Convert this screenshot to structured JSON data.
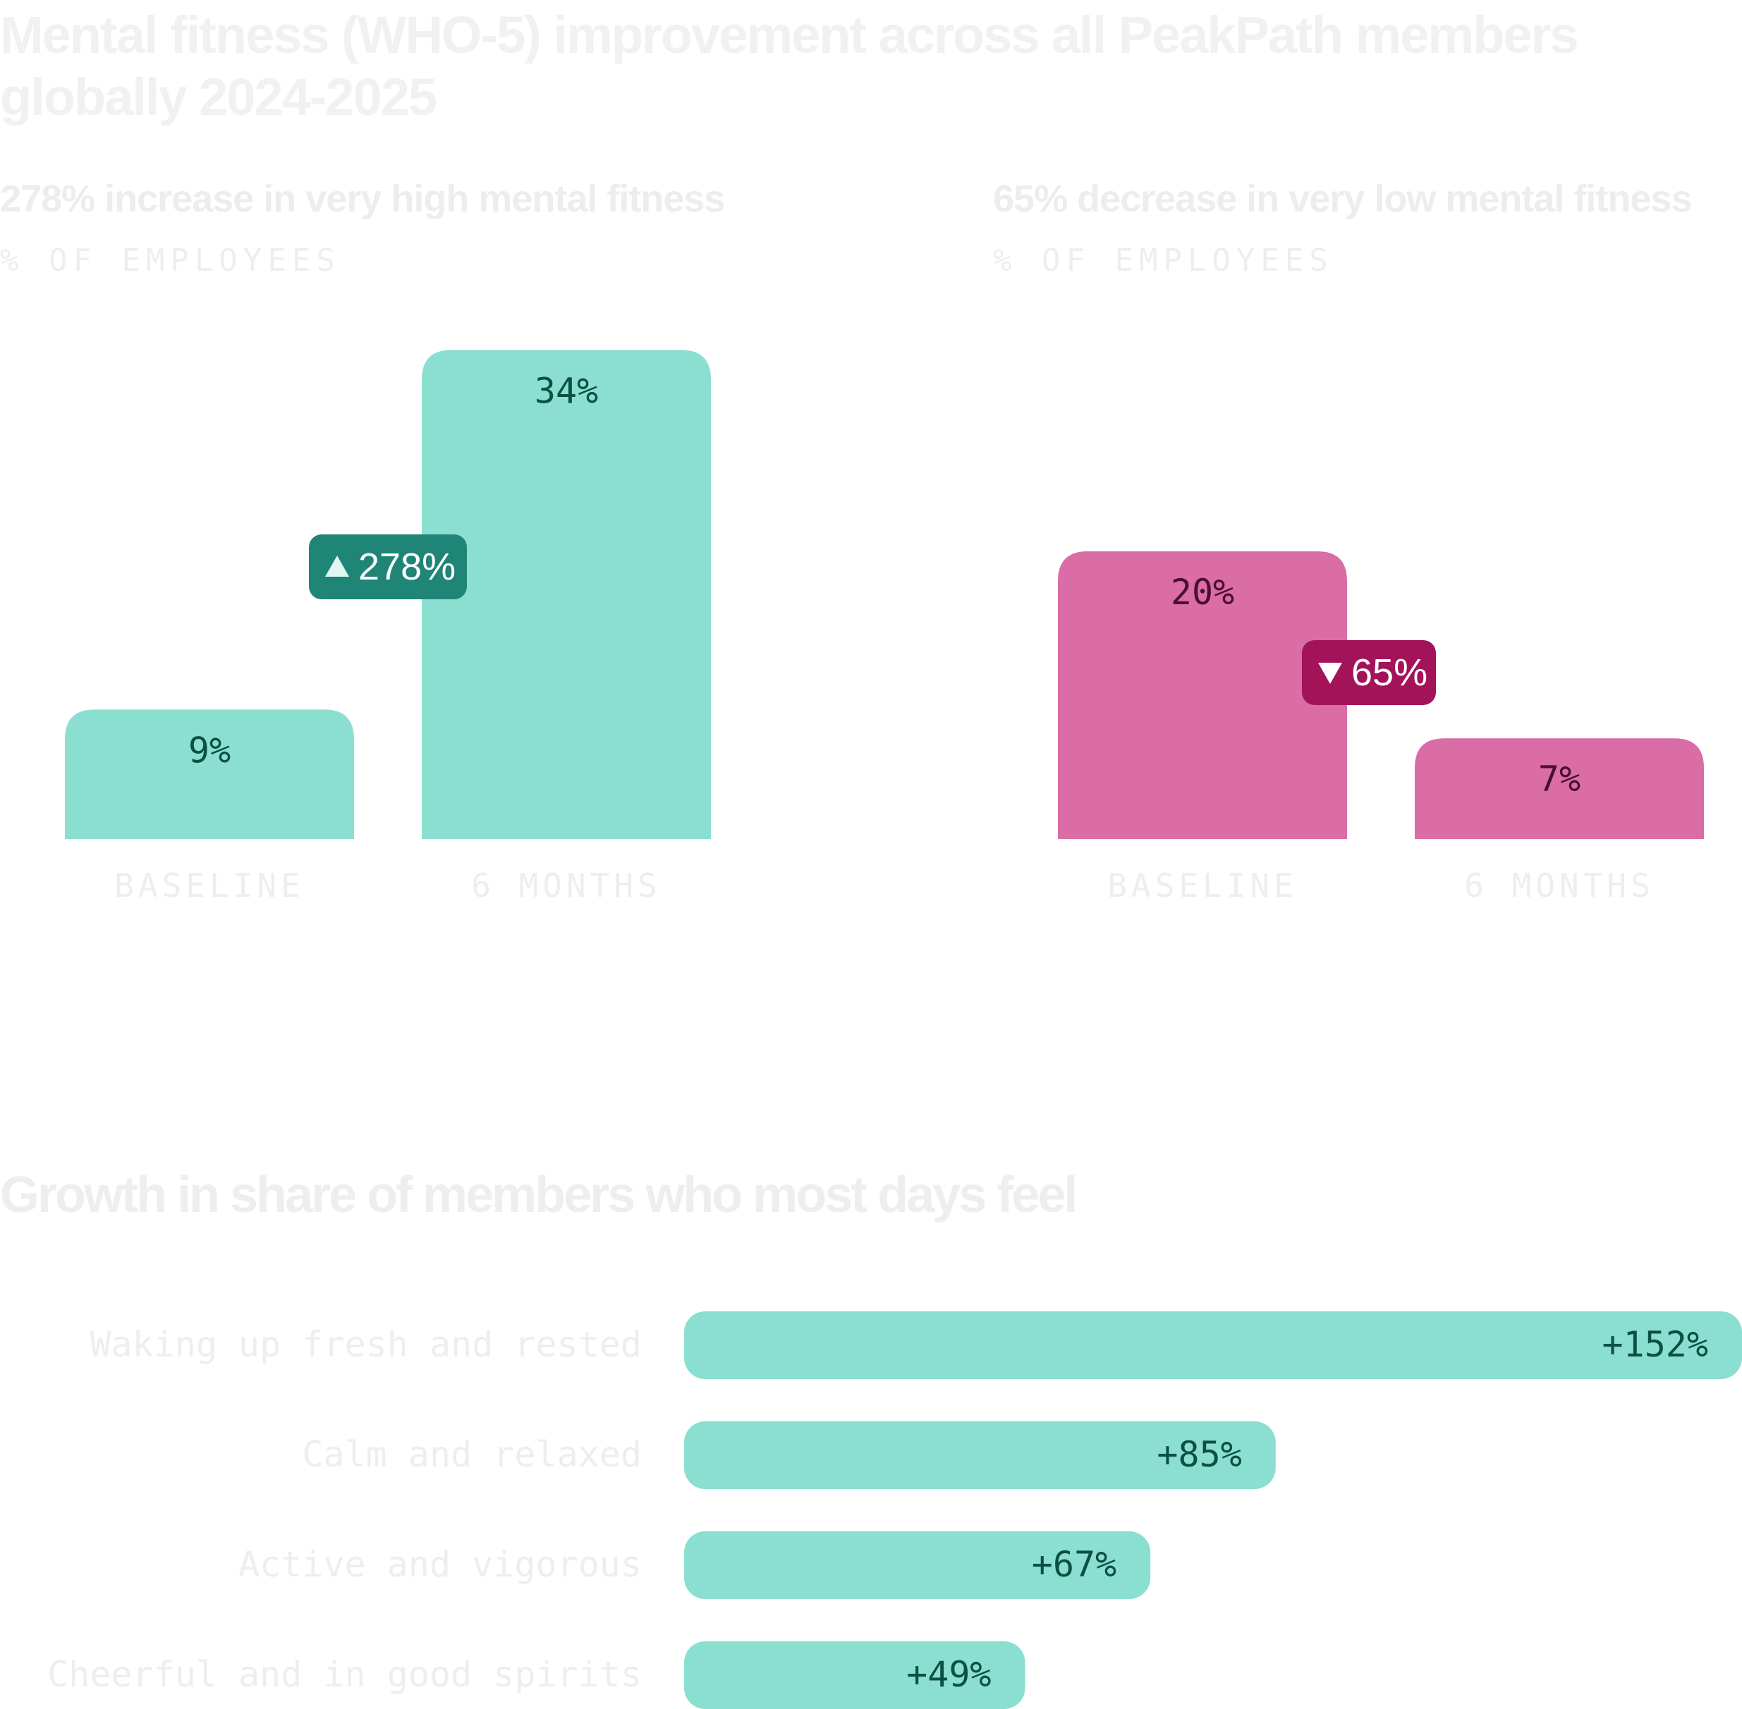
{
  "title": "Mental fitness (WHO-5) improvement across all PeakPath members globally 2024-2025",
  "colors": {
    "teal_bar": "#8adfd0",
    "teal_text": "#0b5043",
    "teal_badge": "#1e8577",
    "pink_bar": "#da6ca6",
    "pink_text": "#4a0f2d",
    "pink_badge": "#a3135a",
    "muted_text": "#eeeeee"
  },
  "chart_data": [
    {
      "type": "bar",
      "title": "278% increase in very high mental fitness",
      "ylabel": "% OF EMPLOYEES",
      "categories": [
        "BASELINE",
        "6 MONTHS"
      ],
      "values": [
        9,
        34
      ],
      "value_labels": [
        "9%",
        "34%"
      ],
      "change": {
        "direction": "up",
        "label": "278%",
        "icon": "triangle-up-icon"
      },
      "color": "teal"
    },
    {
      "type": "bar",
      "title": "65% decrease in very low mental fitness",
      "ylabel": "% OF EMPLOYEES",
      "categories": [
        "BASELINE",
        "6 MONTHS"
      ],
      "values": [
        20,
        7
      ],
      "value_labels": [
        "20%",
        "7%"
      ],
      "change": {
        "direction": "down",
        "label": "65%",
        "icon": "triangle-down-icon"
      },
      "color": "pink"
    },
    {
      "type": "bar",
      "orientation": "horizontal",
      "title": "Growth in share of members who most days feel",
      "categories": [
        "Waking up fresh and rested",
        "Calm and relaxed",
        "Active and vigorous",
        "Cheerful and in good spirits"
      ],
      "values": [
        152,
        85,
        67,
        49
      ],
      "value_labels": [
        "+152%",
        "+85%",
        "+67%",
        "+49%"
      ],
      "color": "teal"
    }
  ]
}
